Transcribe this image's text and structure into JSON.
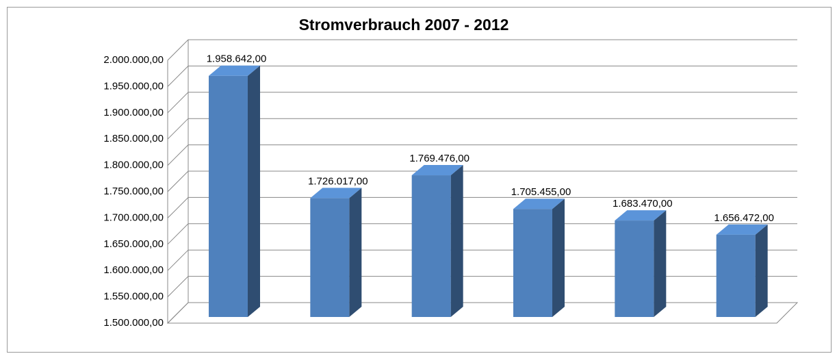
{
  "chart_data": {
    "type": "bar3d",
    "title": "Stromverbrauch 2007 - 2012",
    "values": [
      1958642,
      1726017,
      1769476,
      1705455,
      1683470,
      1656472
    ],
    "value_labels": [
      "1.958.642,00",
      "1.726.017,00",
      "1.769.476,00",
      "1.705.455,00",
      "1.683.470,00",
      "1.656.472,00"
    ],
    "color": "#4f81bd",
    "ylim": [
      1500000,
      2000000
    ],
    "yticks": [
      {
        "value": 1500000,
        "label": "1.500.000,00"
      },
      {
        "value": 1550000,
        "label": "1.550.000,00"
      },
      {
        "value": 1600000,
        "label": "1.600.000,00"
      },
      {
        "value": 1650000,
        "label": "1.650.000,00"
      },
      {
        "value": 1700000,
        "label": "1.700.000,00"
      },
      {
        "value": 1750000,
        "label": "1.750.000,00"
      },
      {
        "value": 1800000,
        "label": "1.800.000,00"
      },
      {
        "value": 1850000,
        "label": "1.850.000,00"
      },
      {
        "value": 1900000,
        "label": "1.900.000,00"
      },
      {
        "value": 1950000,
        "label": "1.950.000,00"
      },
      {
        "value": 2000000,
        "label": "2.000.000,00"
      }
    ],
    "grid": true
  }
}
